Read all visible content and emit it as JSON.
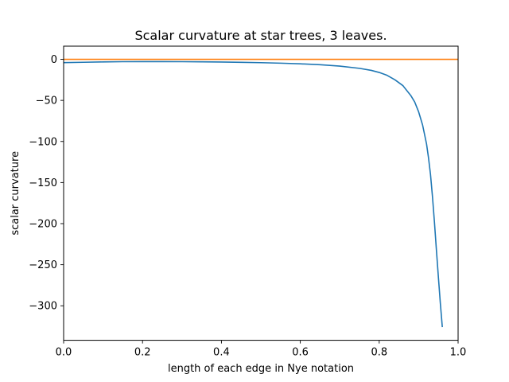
{
  "chart_data": {
    "type": "line",
    "title": "Scalar curvature at star trees, 3 leaves.",
    "xlabel": "length of each edge in Nye notation",
    "ylabel": "scalar curvature",
    "xlim": [
      0.0,
      1.0
    ],
    "ylim": [
      -342,
      16
    ],
    "grid": false,
    "xticks": [
      0.0,
      0.2,
      0.4,
      0.6,
      0.8,
      1.0
    ],
    "xtick_labels": [
      "0.0",
      "0.2",
      "0.4",
      "0.6",
      "0.8",
      "1.0"
    ],
    "yticks": [
      0,
      -50,
      -100,
      -150,
      -200,
      -250,
      -300
    ],
    "ytick_labels": [
      "0",
      "−50",
      "−100",
      "−150",
      "−200",
      "−250",
      "−300"
    ],
    "series": [
      {
        "color": "#1f77b4",
        "x": [
          0.0,
          0.05,
          0.1,
          0.15,
          0.2,
          0.25,
          0.3,
          0.35,
          0.4,
          0.45,
          0.5,
          0.55,
          0.6,
          0.65,
          0.7,
          0.75,
          0.78,
          0.8,
          0.82,
          0.84,
          0.86,
          0.88,
          0.89,
          0.9,
          0.91,
          0.92,
          0.925,
          0.93,
          0.935,
          0.94,
          0.945,
          0.95,
          0.955,
          0.96
        ],
        "y": [
          -4.0,
          -3.6,
          -3.2,
          -2.9,
          -2.8,
          -2.8,
          -2.9,
          -3.1,
          -3.3,
          -3.7,
          -4.1,
          -4.7,
          -5.5,
          -6.6,
          -8.3,
          -11.0,
          -13.5,
          -16.0,
          -19.5,
          -25.0,
          -32.0,
          -44.0,
          -52.0,
          -64.0,
          -80.0,
          -103.0,
          -120.0,
          -140.0,
          -167.0,
          -198.0,
          -232.0,
          -265.0,
          -297.0,
          -326.0
        ]
      },
      {
        "color": "#ff7f0e",
        "x": [
          0.0,
          1.0
        ],
        "y": [
          0.0,
          0.0
        ]
      }
    ]
  }
}
